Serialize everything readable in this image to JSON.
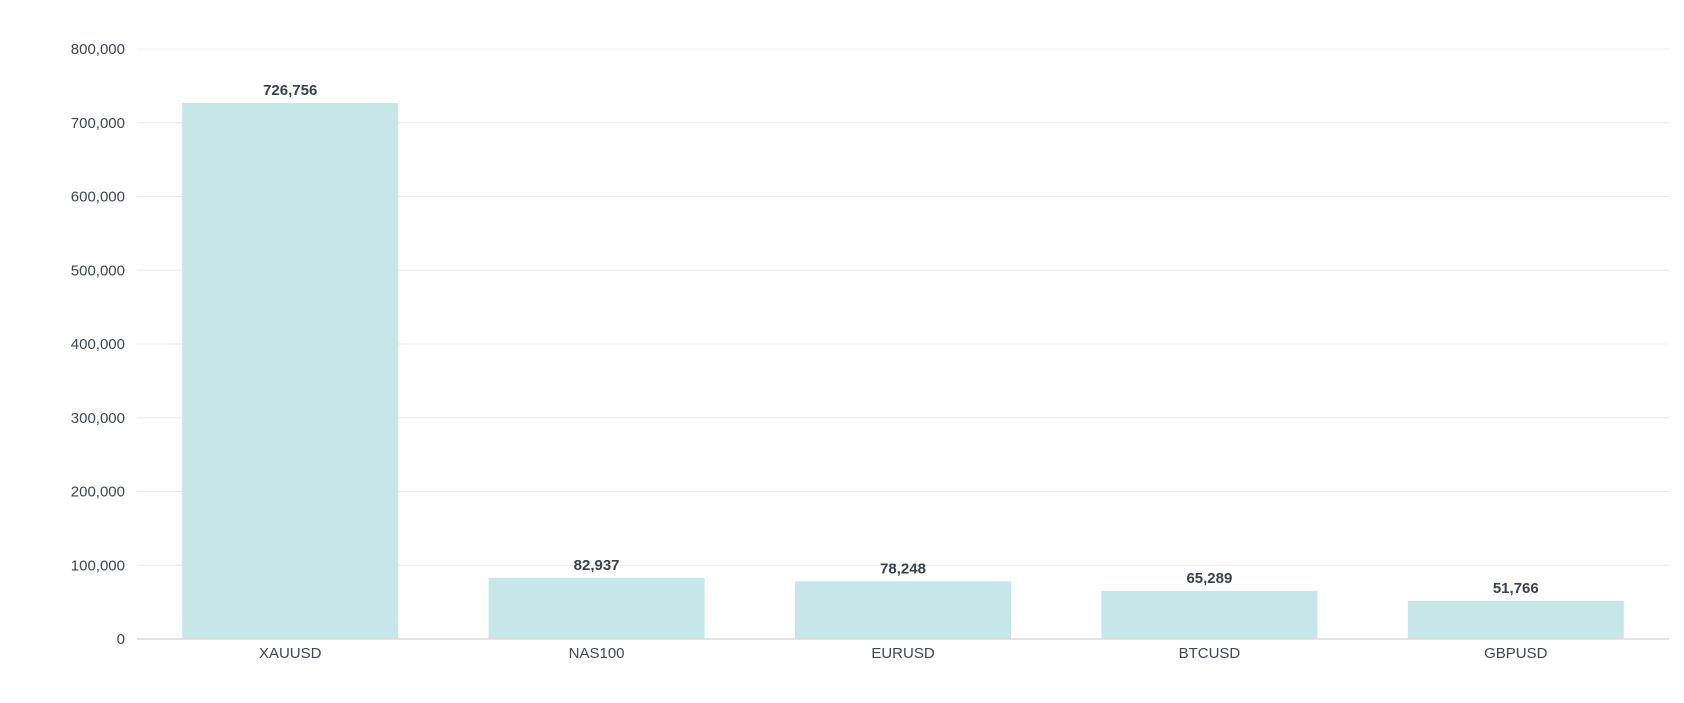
{
  "chart_data": {
    "type": "bar",
    "title": "",
    "xlabel": "",
    "ylabel": "",
    "categories": [
      "XAUUSD",
      "NAS100",
      "EURUSD",
      "BTCUSD",
      "GBPUSD"
    ],
    "values": [
      726756,
      82937,
      78248,
      65289,
      51766
    ],
    "value_labels": [
      "726,756",
      "82,937",
      "78,248",
      "65,289",
      "51,766"
    ],
    "ylim": [
      0,
      800000
    ],
    "yticks": [
      0,
      100000,
      200000,
      300000,
      400000,
      500000,
      600000,
      700000,
      800000
    ],
    "ytick_labels": [
      "0",
      "100,000",
      "200,000",
      "300,000",
      "400,000",
      "500,000",
      "600,000",
      "700,000",
      "800,000"
    ],
    "grid": true,
    "legend": "none",
    "bar_color": "#c5e7e7"
  }
}
